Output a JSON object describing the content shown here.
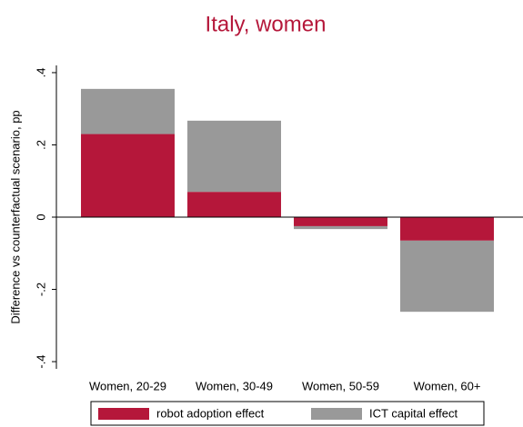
{
  "chart_data": {
    "type": "bar",
    "stacked": true,
    "title": "Italy, women",
    "y_label": "Difference vs counterfactual scenario, pp",
    "categories": [
      "Women, 20-29",
      "Women, 30-49",
      "Women, 50-59",
      "Women, 60+"
    ],
    "series": [
      {
        "name": "robot adoption effect",
        "color": "#b5173a",
        "values": [
          0.23,
          0.07,
          -0.025,
          -0.065
        ]
      },
      {
        "name": "ICT capital effect",
        "color": "#999999",
        "values": [
          0.125,
          0.197,
          -0.008,
          -0.197
        ]
      }
    ],
    "ylim": [
      -0.42,
      0.42
    ],
    "yticks": [
      {
        "value": -0.4,
        "label": "-.4"
      },
      {
        "value": -0.2,
        "label": "-.2"
      },
      0,
      {
        "value": 0.2,
        "label": ".2"
      },
      {
        "value": 0.4,
        "label": ".4"
      }
    ],
    "grid": false
  }
}
